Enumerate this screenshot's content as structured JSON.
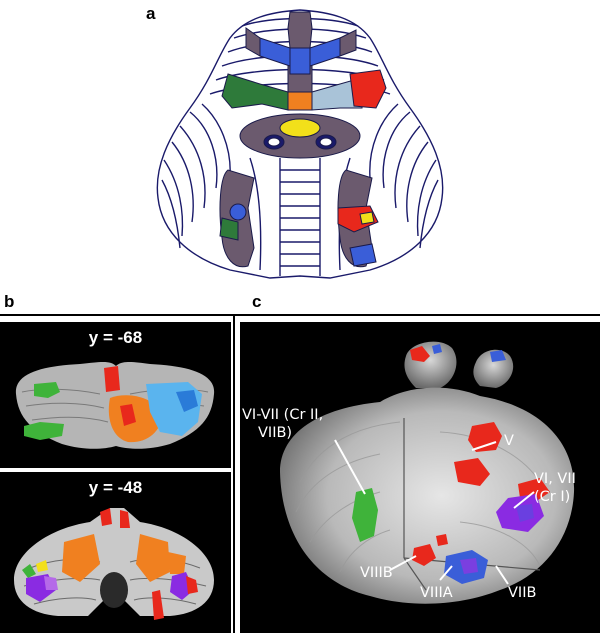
{
  "panels": {
    "a": {
      "letter": "a"
    },
    "b": {
      "letter": "b",
      "slices": [
        {
          "label": "y = -68"
        },
        {
          "label": "y = -48"
        }
      ]
    },
    "c": {
      "letter": "c",
      "labels": {
        "vi_vii_line1": "VI-VII (Cr II,",
        "vi_vii_line2": "VIIB)",
        "v": "V",
        "vi_vii_cri_line1": "VI, VII",
        "vi_vii_cri_line2": "(Cr I)",
        "viiib": "VIIIB",
        "viiia": "VIIIA",
        "viib": "VIIB"
      }
    }
  },
  "colors": {
    "motor_red": "#e8281c",
    "orange": "#f08020",
    "green": "#3fb33a",
    "blue": "#3a5ed8",
    "violet": "#8a2be2",
    "yellow": "#f2e01a",
    "light_blue": "#5ab4ee",
    "homunculus": "#6b5a6e"
  }
}
